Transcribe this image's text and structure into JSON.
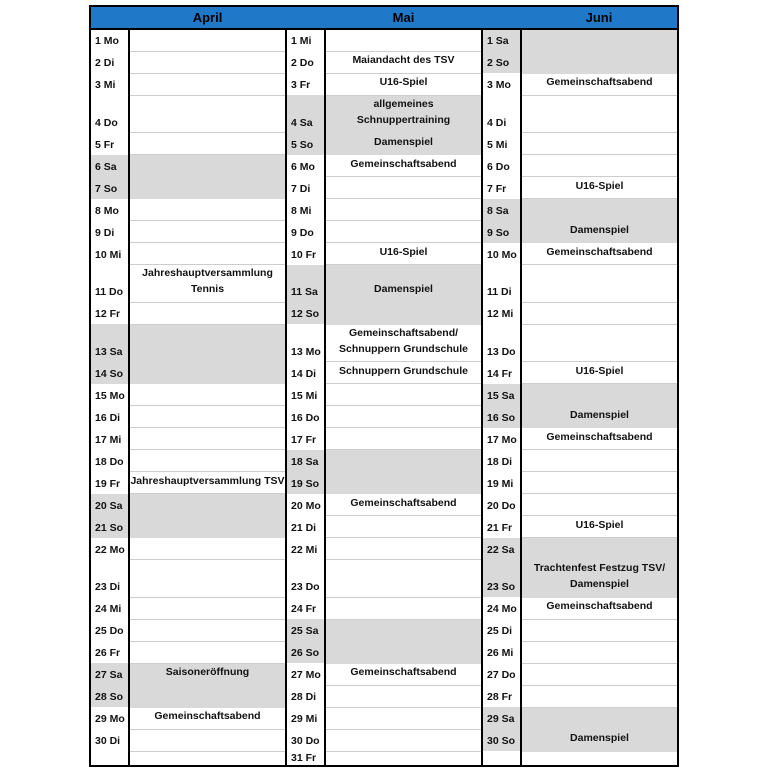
{
  "colors": {
    "header_bg": "#1f78c8",
    "weekend_bg": "#d9d9d9",
    "grid_line": "#cdcdcd",
    "table_border": "#000000"
  },
  "calendar": {
    "months": [
      {
        "name": "April",
        "days": [
          {
            "label": "1 Mo",
            "event": "",
            "weekend": false
          },
          {
            "label": "2 Di",
            "event": "",
            "weekend": false
          },
          {
            "label": "3 Mi",
            "event": "",
            "weekend": false
          },
          {
            "label": "4 Do",
            "event": "",
            "weekend": false
          },
          {
            "label": "5 Fr",
            "event": "",
            "weekend": false
          },
          {
            "label": "6 Sa",
            "event": "",
            "weekend": true
          },
          {
            "label": "7 So",
            "event": "",
            "weekend": true
          },
          {
            "label": "8 Mo",
            "event": "",
            "weekend": false
          },
          {
            "label": "9 Di",
            "event": "",
            "weekend": false
          },
          {
            "label": "10 Mi",
            "event": "",
            "weekend": false
          },
          {
            "label": "11 Do",
            "event": "Jahreshauptversammlung\nTennis",
            "weekend": false
          },
          {
            "label": "12 Fr",
            "event": "",
            "weekend": false
          },
          {
            "label": "13 Sa",
            "event": "",
            "weekend": true
          },
          {
            "label": "14 So",
            "event": "",
            "weekend": true
          },
          {
            "label": "15 Mo",
            "event": "",
            "weekend": false
          },
          {
            "label": "16 Di",
            "event": "",
            "weekend": false
          },
          {
            "label": "17 Mi",
            "event": "",
            "weekend": false
          },
          {
            "label": "18 Do",
            "event": "",
            "weekend": false
          },
          {
            "label": "19 Fr",
            "event": "Jahreshauptversammlung TSV",
            "weekend": false
          },
          {
            "label": "20 Sa",
            "event": "",
            "weekend": true
          },
          {
            "label": "21 So",
            "event": "",
            "weekend": true
          },
          {
            "label": "22 Mo",
            "event": "",
            "weekend": false
          },
          {
            "label": "23 Di",
            "event": "",
            "weekend": false
          },
          {
            "label": "24 Mi",
            "event": "",
            "weekend": false
          },
          {
            "label": "25 Do",
            "event": "",
            "weekend": false
          },
          {
            "label": "26 Fr",
            "event": "",
            "weekend": false
          },
          {
            "label": "27 Sa",
            "event": "Saisoneröffnung",
            "weekend": true
          },
          {
            "label": "28 So",
            "event": "",
            "weekend": true
          },
          {
            "label": "29 Mo",
            "event": "Gemeinschaftsabend",
            "weekend": false
          },
          {
            "label": "30 Di",
            "event": "",
            "weekend": false
          }
        ]
      },
      {
        "name": "Mai",
        "days": [
          {
            "label": "1 Mi",
            "event": "",
            "weekend": false
          },
          {
            "label": "2 Do",
            "event": "Maiandacht des TSV",
            "weekend": false
          },
          {
            "label": "3 Fr",
            "event": "U16-Spiel",
            "weekend": false
          },
          {
            "label": "4 Sa",
            "event": "allgemeines\nSchnuppertraining",
            "weekend": true
          },
          {
            "label": "5 So",
            "event": "Damenspiel",
            "weekend": true
          },
          {
            "label": "6 Mo",
            "event": "Gemeinschaftsabend",
            "weekend": false
          },
          {
            "label": "7 Di",
            "event": "",
            "weekend": false
          },
          {
            "label": "8 Mi",
            "event": "",
            "weekend": false
          },
          {
            "label": "9 Do",
            "event": "",
            "weekend": false
          },
          {
            "label": "10 Fr",
            "event": "U16-Spiel",
            "weekend": false
          },
          {
            "label": "11 Sa",
            "event": "Damenspiel",
            "weekend": true
          },
          {
            "label": "12 So",
            "event": "",
            "weekend": true
          },
          {
            "label": "13 Mo",
            "event": "Gemeinschaftsabend/\nSchnuppern Grundschule",
            "weekend": false
          },
          {
            "label": "14 Di",
            "event": "Schnuppern Grundschule",
            "weekend": false
          },
          {
            "label": "15 Mi",
            "event": "",
            "weekend": false
          },
          {
            "label": "16 Do",
            "event": "",
            "weekend": false
          },
          {
            "label": "17 Fr",
            "event": "",
            "weekend": false
          },
          {
            "label": "18 Sa",
            "event": "",
            "weekend": true
          },
          {
            "label": "19 So",
            "event": "",
            "weekend": true
          },
          {
            "label": "20 Mo",
            "event": "Gemeinschaftsabend",
            "weekend": false
          },
          {
            "label": "21 Di",
            "event": "",
            "weekend": false
          },
          {
            "label": "22 Mi",
            "event": "",
            "weekend": false
          },
          {
            "label": "23 Do",
            "event": "",
            "weekend": false
          },
          {
            "label": "24 Fr",
            "event": "",
            "weekend": false
          },
          {
            "label": "25 Sa",
            "event": "",
            "weekend": true
          },
          {
            "label": "26 So",
            "event": "",
            "weekend": true
          },
          {
            "label": "27 Mo",
            "event": "Gemeinschaftsabend",
            "weekend": false
          },
          {
            "label": "28 Di",
            "event": "",
            "weekend": false
          },
          {
            "label": "29 Mi",
            "event": "",
            "weekend": false
          },
          {
            "label": "30 Do",
            "event": "",
            "weekend": false
          },
          {
            "label": "31 Fr",
            "event": "",
            "weekend": false
          }
        ]
      },
      {
        "name": "Juni",
        "days": [
          {
            "label": "1 Sa",
            "event": "",
            "weekend": true
          },
          {
            "label": "2 So",
            "event": "",
            "weekend": true
          },
          {
            "label": "3 Mo",
            "event": "Gemeinschaftsabend",
            "weekend": false
          },
          {
            "label": "4 Di",
            "event": "",
            "weekend": false
          },
          {
            "label": "5 Mi",
            "event": "",
            "weekend": false
          },
          {
            "label": "6 Do",
            "event": "",
            "weekend": false
          },
          {
            "label": "7 Fr",
            "event": "U16-Spiel",
            "weekend": false
          },
          {
            "label": "8 Sa",
            "event": "",
            "weekend": true
          },
          {
            "label": "9 So",
            "event": "Damenspiel",
            "weekend": true
          },
          {
            "label": "10 Mo",
            "event": "Gemeinschaftsabend",
            "weekend": false
          },
          {
            "label": "11 Di",
            "event": "",
            "weekend": false
          },
          {
            "label": "12 Mi",
            "event": "",
            "weekend": false
          },
          {
            "label": "13 Do",
            "event": "",
            "weekend": false
          },
          {
            "label": "14 Fr",
            "event": "U16-Spiel",
            "weekend": false
          },
          {
            "label": "15 Sa",
            "event": "",
            "weekend": true
          },
          {
            "label": "16 So",
            "event": "Damenspiel",
            "weekend": true
          },
          {
            "label": "17 Mo",
            "event": "Gemeinschaftsabend",
            "weekend": false
          },
          {
            "label": "18 Di",
            "event": "",
            "weekend": false
          },
          {
            "label": "19 Mi",
            "event": "",
            "weekend": false
          },
          {
            "label": "20 Do",
            "event": "",
            "weekend": false
          },
          {
            "label": "21 Fr",
            "event": "U16-Spiel",
            "weekend": false
          },
          {
            "label": "22 Sa",
            "event": "",
            "weekend": true
          },
          {
            "label": "23 So",
            "event": "Trachtenfest Festzug TSV/\nDamenspiel",
            "weekend": true
          },
          {
            "label": "24 Mo",
            "event": "Gemeinschaftsabend",
            "weekend": false
          },
          {
            "label": "25 Di",
            "event": "",
            "weekend": false
          },
          {
            "label": "26 Mi",
            "event": "",
            "weekend": false
          },
          {
            "label": "27 Do",
            "event": "",
            "weekend": false
          },
          {
            "label": "28 Fr",
            "event": "",
            "weekend": false
          },
          {
            "label": "29 Sa",
            "event": "",
            "weekend": true
          },
          {
            "label": "30 So",
            "event": "Damenspiel",
            "weekend": true
          }
        ]
      }
    ]
  }
}
